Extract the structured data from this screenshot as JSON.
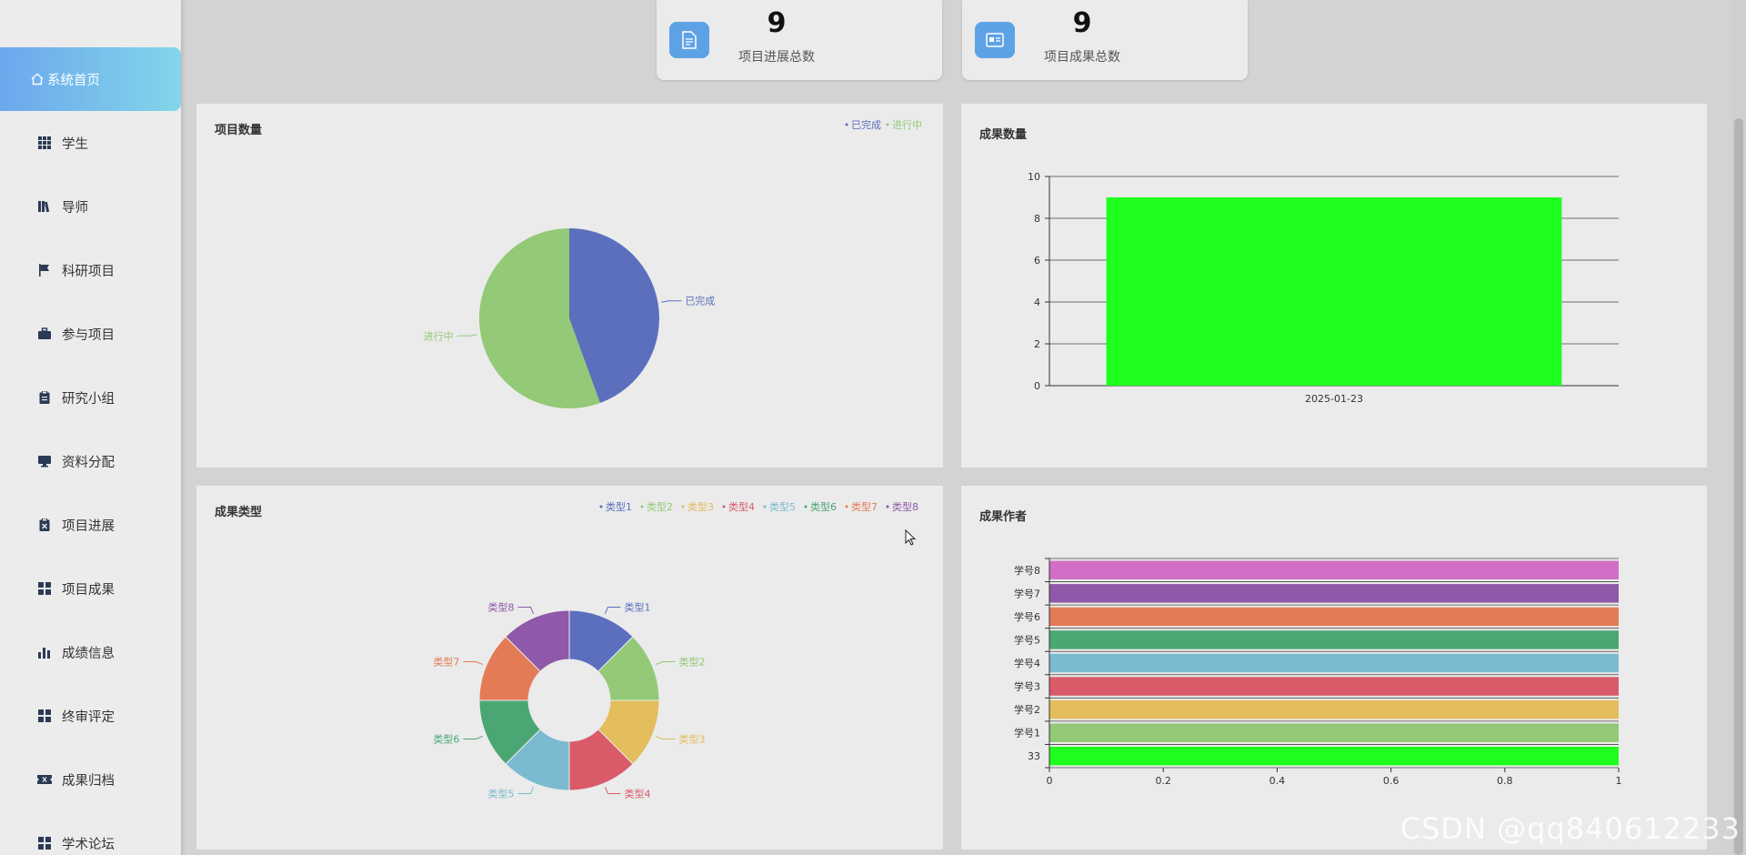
{
  "sidebar": {
    "items": [
      {
        "label": "系统首页",
        "icon": "home-icon",
        "active": true
      },
      {
        "label": "学生",
        "icon": "grid-icon"
      },
      {
        "label": "导师",
        "icon": "books-icon"
      },
      {
        "label": "科研项目",
        "icon": "flag-icon"
      },
      {
        "label": "参与项目",
        "icon": "briefcase-icon"
      },
      {
        "label": "研究小组",
        "icon": "clipboard-icon"
      },
      {
        "label": "资料分配",
        "icon": "monitor-icon"
      },
      {
        "label": "项目进展",
        "icon": "clipboard-x-icon"
      },
      {
        "label": "项目成果",
        "icon": "apps-icon"
      },
      {
        "label": "成绩信息",
        "icon": "bar-chart-icon"
      },
      {
        "label": "终审评定",
        "icon": "apps-icon"
      },
      {
        "label": "成果归档",
        "icon": "ticket-icon"
      },
      {
        "label": "学术论坛",
        "icon": "apps-icon"
      }
    ]
  },
  "stats": [
    {
      "value": "9",
      "label": "项目进展总数",
      "icon": "document-icon"
    },
    {
      "value": "9",
      "label": "项目成果总数",
      "icon": "id-card-icon"
    }
  ],
  "panels": {
    "project_count": {
      "title": "项目数量"
    },
    "result_count": {
      "title": "成果数量"
    },
    "result_type": {
      "title": "成果类型"
    },
    "result_author": {
      "title": "成果作者"
    }
  },
  "colors": {
    "blue": "#5b6fbd",
    "green": "#93c977",
    "yellow": "#e4bd5c",
    "red": "#d95b6a",
    "cyan": "#7abbd2",
    "teal": "#4aa774",
    "orange": "#e47b57",
    "purple": "#8f58a8",
    "pink": "#d16fc6",
    "lime": "#1eff1e"
  },
  "chart_data": [
    {
      "type": "pie",
      "title": "项目数量",
      "legend": [
        "已完成",
        "进行中"
      ],
      "categories": [
        "已完成",
        "进行中"
      ],
      "values": [
        4,
        5
      ],
      "colors": [
        "#5b6fbd",
        "#93c977"
      ]
    },
    {
      "type": "bar",
      "title": "成果数量",
      "categories": [
        "2025-01-23"
      ],
      "values": [
        9
      ],
      "ylim": [
        0,
        10
      ],
      "yticks": [
        "0",
        "2",
        "4",
        "6",
        "8",
        "10"
      ],
      "color": "#1eff1e"
    },
    {
      "type": "pie",
      "title": "成果类型",
      "donut": true,
      "legend": [
        "类型1",
        "类型2",
        "类型3",
        "类型4",
        "类型5",
        "类型6",
        "类型7",
        "类型8"
      ],
      "categories": [
        "类型1",
        "类型2",
        "类型3",
        "类型4",
        "类型5",
        "类型6",
        "类型7",
        "类型8"
      ],
      "values": [
        1,
        1,
        1,
        1,
        1,
        1,
        1,
        1
      ],
      "colors": [
        "#5b6fbd",
        "#93c977",
        "#e4bd5c",
        "#d95b6a",
        "#7abbd2",
        "#4aa774",
        "#e47b57",
        "#8f58a8"
      ]
    },
    {
      "type": "bar",
      "orientation": "horizontal",
      "title": "成果作者",
      "categories": [
        "33",
        "学号1",
        "学号2",
        "学号3",
        "学号4",
        "学号5",
        "学号6",
        "学号7",
        "学号8"
      ],
      "values": [
        1,
        1,
        1,
        1,
        1,
        1,
        1,
        1,
        1
      ],
      "xlim": [
        0,
        1
      ],
      "xticks": [
        "0",
        "0.2",
        "0.4",
        "0.6",
        "0.8",
        "1"
      ],
      "colors": [
        "#1eff1e",
        "#93c977",
        "#e4bd5c",
        "#d95b6a",
        "#7abbd2",
        "#4aa774",
        "#e47b57",
        "#8f58a8",
        "#d16fc6"
      ]
    }
  ],
  "watermark": "CSDN @qq840612233"
}
